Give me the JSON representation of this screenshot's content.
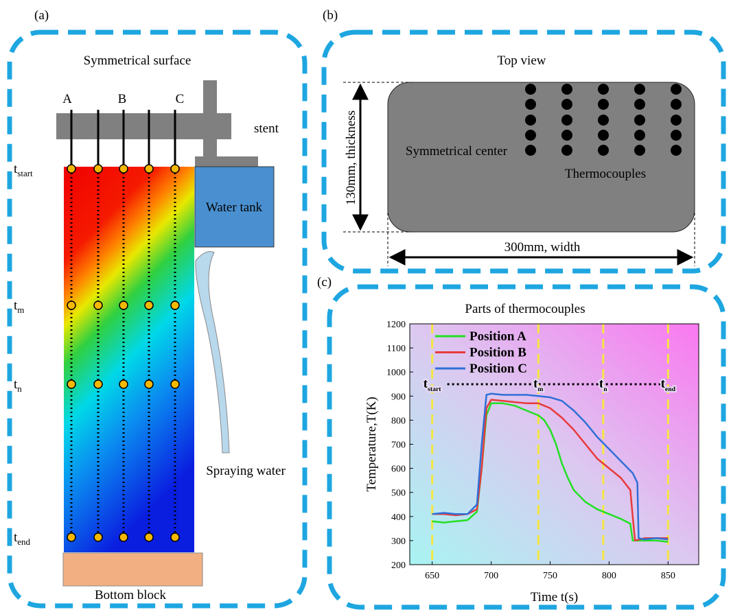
{
  "panel_a": {
    "label": "(a)",
    "title": "Symmetrical surface",
    "positions": [
      "A",
      "B",
      "C"
    ],
    "stent": "stent",
    "water_tank": "Water tank",
    "spraying_water": "Spraying water",
    "bottom_block": "Bottom block",
    "time_labels": [
      {
        "text": "t",
        "sub": "start"
      },
      {
        "text": "t",
        "sub": "m"
      },
      {
        "text": "t",
        "sub": "n"
      },
      {
        "text": "t",
        "sub": "end"
      }
    ]
  },
  "panel_b": {
    "label": "(b)",
    "title": "Top view",
    "center": "Symmetrical center",
    "thermocouples": "Thermocouples",
    "thickness": "130mm, thickness",
    "width": "300mm, width"
  },
  "panel_c_label": "(c)",
  "chart_data": {
    "type": "line",
    "title": "Parts of thermocouples",
    "x_label": "Time t(s)",
    "y_label": "Temperature,T(K)",
    "xlim": [
      631,
      876
    ],
    "xticks": [
      650,
      700,
      750,
      800,
      850
    ],
    "ylim": [
      200,
      1200
    ],
    "yticks": [
      200,
      300,
      400,
      500,
      600,
      700,
      800,
      900,
      1000,
      1100,
      1200
    ],
    "markers": [
      {
        "x": 650,
        "text": "t",
        "sub": "start"
      },
      {
        "x": 740,
        "text": "t",
        "sub": "m"
      },
      {
        "x": 795,
        "text": "t",
        "sub": "n"
      },
      {
        "x": 850,
        "text": "t",
        "sub": "end"
      }
    ],
    "marker_color": "#f5e642",
    "series": [
      {
        "name": "Position A",
        "color": "#22e022",
        "x": [
          650,
          660,
          670,
          680,
          688,
          692,
          696,
          700,
          710,
          720,
          730,
          740,
          745,
          750,
          755,
          760,
          765,
          770,
          780,
          790,
          800,
          810,
          818,
          820,
          830,
          840,
          850
        ],
        "values": [
          380,
          375,
          380,
          385,
          420,
          600,
          820,
          870,
          870,
          860,
          840,
          820,
          800,
          760,
          700,
          620,
          560,
          510,
          460,
          430,
          410,
          390,
          370,
          300,
          300,
          300,
          295
        ]
      },
      {
        "name": "Position B",
        "color": "#e83a3a",
        "x": [
          650,
          660,
          670,
          680,
          688,
          692,
          696,
          700,
          710,
          720,
          730,
          740,
          750,
          760,
          770,
          780,
          790,
          800,
          810,
          818,
          820,
          822,
          830,
          840,
          850
        ],
        "values": [
          410,
          410,
          405,
          410,
          430,
          600,
          850,
          885,
          880,
          875,
          870,
          870,
          850,
          810,
          760,
          700,
          640,
          600,
          560,
          510,
          400,
          300,
          310,
          310,
          310
        ]
      },
      {
        "name": "Position C",
        "color": "#2f6fd6",
        "x": [
          650,
          660,
          670,
          680,
          688,
          692,
          696,
          700,
          710,
          720,
          730,
          740,
          750,
          760,
          770,
          780,
          790,
          800,
          810,
          820,
          824,
          825,
          830,
          840,
          850
        ],
        "values": [
          410,
          415,
          410,
          410,
          450,
          700,
          905,
          910,
          905,
          905,
          905,
          900,
          895,
          880,
          840,
          790,
          730,
          680,
          630,
          580,
          540,
          310,
          305,
          310,
          305
        ]
      }
    ]
  }
}
